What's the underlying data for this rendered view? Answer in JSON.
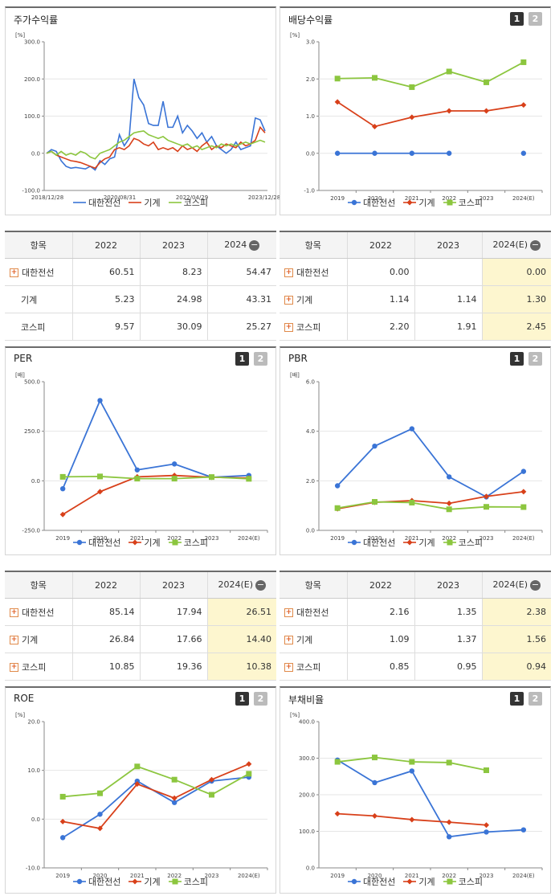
{
  "colors": {
    "s1": "#3a74d6",
    "s2": "#d8401a",
    "s3": "#8cc63f"
  },
  "series_names": [
    "대한전선",
    "기계",
    "코스피"
  ],
  "pager": [
    "1",
    "2"
  ],
  "charts": [
    {
      "id": "stock",
      "title": "주가수익률",
      "unit": "[%]",
      "pager": false,
      "chart_data": {
        "type": "line",
        "x_labels": [
          "2018/12/28",
          "2020/08/31",
          "2022/04/29",
          "2023/12/28"
        ],
        "ylim": [
          -100,
          300
        ],
        "yticks": [
          "300.0",
          "200.0",
          "100.0",
          "0.0",
          "-100.0"
        ],
        "series": [
          {
            "name": "대한전선",
            "values": [
              0,
              10,
              5,
              -20,
              -35,
              -40,
              -38,
              -40,
              -42,
              -35,
              -45,
              -20,
              -30,
              -15,
              -10,
              50,
              20,
              40,
              200,
              150,
              130,
              80,
              75,
              75,
              140,
              70,
              70,
              100,
              55,
              75,
              60,
              40,
              55,
              30,
              45,
              20,
              10,
              0,
              10,
              30,
              10,
              15,
              20,
              95,
              90,
              60
            ]
          },
          {
            "name": "기계",
            "values": [
              0,
              5,
              -5,
              -10,
              -15,
              -20,
              -22,
              -25,
              -30,
              -35,
              -40,
              -25,
              -15,
              -10,
              10,
              15,
              10,
              20,
              40,
              35,
              25,
              20,
              30,
              10,
              15,
              10,
              15,
              5,
              20,
              10,
              15,
              5,
              20,
              30,
              10,
              20,
              15,
              25,
              20,
              15,
              30,
              20,
              25,
              35,
              70,
              55
            ]
          },
          {
            "name": "코스피",
            "values": [
              0,
              5,
              -5,
              5,
              -5,
              0,
              -5,
              5,
              0,
              -10,
              -15,
              0,
              5,
              10,
              20,
              30,
              35,
              45,
              55,
              58,
              60,
              50,
              45,
              40,
              45,
              35,
              30,
              25,
              20,
              25,
              15,
              20,
              10,
              15,
              20,
              15,
              25,
              20,
              25,
              20,
              25,
              30,
              25,
              30,
              35,
              30
            ]
          }
        ]
      }
    },
    {
      "id": "dividend",
      "title": "배당수익률",
      "unit": "[%]",
      "pager": true,
      "chart_data": {
        "type": "line",
        "categories": [
          "2019",
          "2020",
          "2021",
          "2022",
          "2023",
          "2024(E)"
        ],
        "ylim": [
          -1,
          3
        ],
        "yticks": [
          "3.0",
          "2.0",
          "1.0",
          "0.0",
          "-1.0"
        ],
        "series": [
          {
            "name": "대한전선",
            "values": [
              0,
              0,
              0,
              0,
              null,
              0
            ]
          },
          {
            "name": "기계",
            "values": [
              1.38,
              0.72,
              0.97,
              1.14,
              1.14,
              1.3
            ]
          },
          {
            "name": "코스피",
            "values": [
              2.01,
              2.03,
              1.78,
              2.2,
              1.91,
              2.45
            ]
          }
        ]
      }
    },
    {
      "id": "per",
      "title": "PER",
      "unit": "[배]",
      "pager": true,
      "chart_data": {
        "type": "line",
        "categories": [
          "2019",
          "2020",
          "2021",
          "2022",
          "2023",
          "2024(E)"
        ],
        "ylim": [
          -250,
          500
        ],
        "yticks": [
          "500.0",
          "250.0",
          "0.0",
          "-250.0"
        ],
        "series": [
          {
            "name": "대한전선",
            "values": [
              -40,
              405,
              55,
              85,
              18,
              27
            ]
          },
          {
            "name": "기계",
            "values": [
              -170,
              -55,
              20,
              27,
              18,
              14
            ]
          },
          {
            "name": "코스피",
            "values": [
              20,
              22,
              11,
              11,
              19,
              10
            ]
          }
        ]
      }
    },
    {
      "id": "pbr",
      "title": "PBR",
      "unit": "[배]",
      "pager": true,
      "chart_data": {
        "type": "line",
        "categories": [
          "2019",
          "2020",
          "2021",
          "2022",
          "2023",
          "2024(E)"
        ],
        "ylim": [
          0,
          6
        ],
        "yticks": [
          "6.0",
          "4.0",
          "2.0",
          "0.0"
        ],
        "series": [
          {
            "name": "대한전선",
            "values": [
              1.8,
              3.4,
              4.1,
              2.16,
              1.35,
              2.38
            ]
          },
          {
            "name": "기계",
            "values": [
              0.87,
              1.13,
              1.2,
              1.09,
              1.37,
              1.56
            ]
          },
          {
            "name": "코스피",
            "values": [
              0.9,
              1.15,
              1.12,
              0.85,
              0.95,
              0.94
            ]
          }
        ]
      }
    },
    {
      "id": "roe",
      "title": "ROE",
      "unit": "[%]",
      "pager": true,
      "chart_data": {
        "type": "line",
        "categories": [
          "2019",
          "2020",
          "2021",
          "2022",
          "2023",
          "2024(E)"
        ],
        "ylim": [
          -10,
          20
        ],
        "yticks": [
          "20.0",
          "10.0",
          "0.0",
          "-10.0"
        ],
        "series": [
          {
            "name": "대한전선",
            "values": [
              -3.8,
              1.0,
              7.8,
              3.4,
              7.8,
              8.6
            ]
          },
          {
            "name": "기계",
            "values": [
              -0.5,
              -1.9,
              7.2,
              4.3,
              8.1,
              11.3
            ]
          },
          {
            "name": "코스피",
            "values": [
              4.6,
              5.3,
              10.8,
              8.1,
              5.0,
              9.3
            ]
          }
        ]
      }
    },
    {
      "id": "debt",
      "title": "부채비율",
      "unit": "[%]",
      "pager": true,
      "chart_data": {
        "type": "line",
        "categories": [
          "2019",
          "2020",
          "2021",
          "2022",
          "2023",
          "2024(E)"
        ],
        "ylim": [
          0,
          400
        ],
        "yticks": [
          "400.0",
          "300.0",
          "200.0",
          "100.0",
          "0.0"
        ],
        "series": [
          {
            "name": "대한전선",
            "values": [
              295,
              233,
              265,
              85,
              98,
              104
            ]
          },
          {
            "name": "기계",
            "values": [
              148,
              142,
              132,
              125,
              117,
              null
            ]
          },
          {
            "name": "코스피",
            "values": [
              290,
              302,
              290,
              288,
              267,
              null
            ]
          }
        ]
      }
    }
  ],
  "tables": [
    {
      "id": "stock",
      "header": [
        "항목",
        "2022",
        "2023",
        "2024"
      ],
      "minus": "−",
      "highlight": false,
      "rows": [
        {
          "name": "대한전선",
          "plus": true,
          "values": [
            "60.51",
            "8.23",
            "54.47"
          ]
        },
        {
          "name": "기계",
          "plus": false,
          "values": [
            "5.23",
            "24.98",
            "43.31"
          ]
        },
        {
          "name": "코스피",
          "plus": false,
          "values": [
            "9.57",
            "30.09",
            "25.27"
          ]
        }
      ]
    },
    {
      "id": "dividend",
      "header": [
        "항목",
        "2022",
        "2023",
        "2024(E)"
      ],
      "minus": "−",
      "highlight": true,
      "rows": [
        {
          "name": "대한전선",
          "plus": true,
          "values": [
            "0.00",
            "",
            "0.00"
          ]
        },
        {
          "name": "기계",
          "plus": true,
          "values": [
            "1.14",
            "1.14",
            "1.30"
          ]
        },
        {
          "name": "코스피",
          "plus": true,
          "values": [
            "2.20",
            "1.91",
            "2.45"
          ]
        }
      ]
    },
    {
      "id": "per",
      "header": [
        "항목",
        "2022",
        "2023",
        "2024(E)"
      ],
      "minus": "−",
      "highlight": true,
      "rows": [
        {
          "name": "대한전선",
          "plus": true,
          "values": [
            "85.14",
            "17.94",
            "26.51"
          ]
        },
        {
          "name": "기계",
          "plus": true,
          "values": [
            "26.84",
            "17.66",
            "14.40"
          ]
        },
        {
          "name": "코스피",
          "plus": true,
          "values": [
            "10.85",
            "19.36",
            "10.38"
          ]
        }
      ]
    },
    {
      "id": "pbr",
      "header": [
        "항목",
        "2022",
        "2023",
        "2024(E)"
      ],
      "minus": "−",
      "highlight": true,
      "rows": [
        {
          "name": "대한전선",
          "plus": true,
          "values": [
            "2.16",
            "1.35",
            "2.38"
          ]
        },
        {
          "name": "기계",
          "plus": true,
          "values": [
            "1.09",
            "1.37",
            "1.56"
          ]
        },
        {
          "name": "코스피",
          "plus": true,
          "values": [
            "0.85",
            "0.95",
            "0.94"
          ]
        }
      ]
    }
  ]
}
